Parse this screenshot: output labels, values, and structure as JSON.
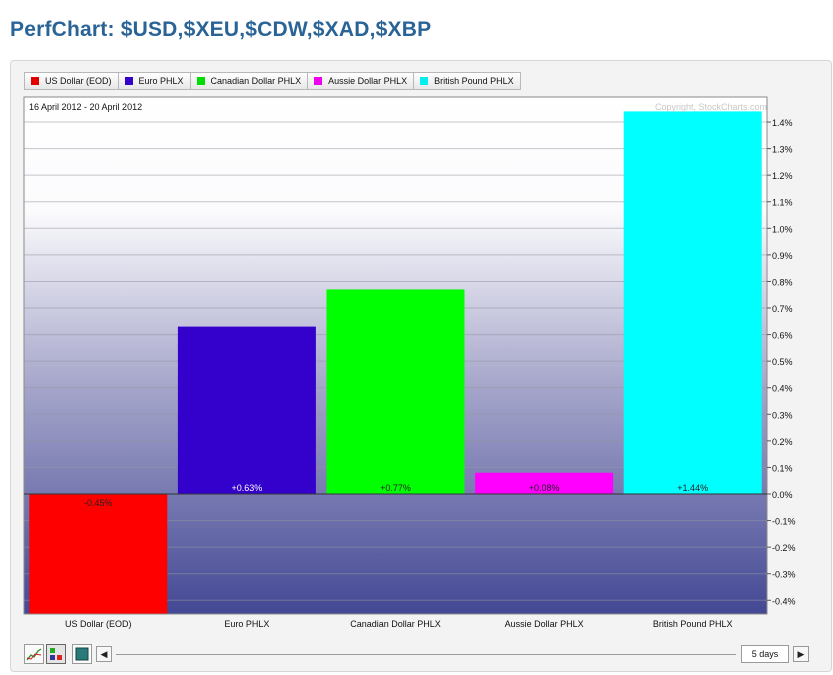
{
  "page": {
    "title": "PerfChart: $USD,$XEU,$CDW,$XAD,$XBP"
  },
  "legend": [
    {
      "label": "US Dollar (EOD)",
      "color": "#e00000"
    },
    {
      "label": "Euro PHLX",
      "color": "#3300cc"
    },
    {
      "label": "Canadian Dollar PHLX",
      "color": "#00dd00"
    },
    {
      "label": "Aussie Dollar PHLX",
      "color": "#ee00ee"
    },
    {
      "label": "British Pound PHLX",
      "color": "#00eeee"
    }
  ],
  "chart_data": {
    "type": "bar",
    "date_range": "16 April 2012 - 20 April 2012",
    "copyright": "Copyright, StockCharts.com",
    "categories": [
      "US Dollar (EOD)",
      "Euro PHLX",
      "Canadian Dollar PHLX",
      "Aussie Dollar PHLX",
      "British Pound PHLX"
    ],
    "values": [
      -0.45,
      0.63,
      0.77,
      0.08,
      1.44
    ],
    "value_labels": [
      "-0.45%",
      "+0.63%",
      "+0.77%",
      "+0.08%",
      "+1.44%"
    ],
    "colors": [
      "#ff0000",
      "#3300cc",
      "#00ff00",
      "#ff00ff",
      "#00ffff"
    ],
    "yticks": [
      {
        "v": 1.4,
        "label": "1.4%"
      },
      {
        "v": 1.3,
        "label": "1.3%"
      },
      {
        "v": 1.2,
        "label": "1.2%"
      },
      {
        "v": 1.1,
        "label": "1.1%"
      },
      {
        "v": 1.0,
        "label": "1.0%"
      },
      {
        "v": 0.9,
        "label": "0.9%"
      },
      {
        "v": 0.8,
        "label": "0.8%"
      },
      {
        "v": 0.7,
        "label": "0.7%"
      },
      {
        "v": 0.6,
        "label": "0.6%"
      },
      {
        "v": 0.5,
        "label": "0.5%"
      },
      {
        "v": 0.4,
        "label": "0.4%"
      },
      {
        "v": 0.3,
        "label": "0.3%"
      },
      {
        "v": 0.2,
        "label": "0.2%"
      },
      {
        "v": 0.1,
        "label": "0.1%"
      },
      {
        "v": 0.0,
        "label": "0.0%"
      },
      {
        "v": -0.1,
        "label": "-0.1%"
      },
      {
        "v": -0.2,
        "label": "-0.2%"
      },
      {
        "v": -0.3,
        "label": "-0.3%"
      },
      {
        "v": -0.4,
        "label": "-0.4%"
      }
    ],
    "ylim": [
      -0.45,
      1.45
    ],
    "grid": true,
    "legend_position": "top"
  },
  "controls": {
    "period_label": "5 days",
    "scroll_left_icon": "◀",
    "scroll_right_icon": "▶"
  }
}
